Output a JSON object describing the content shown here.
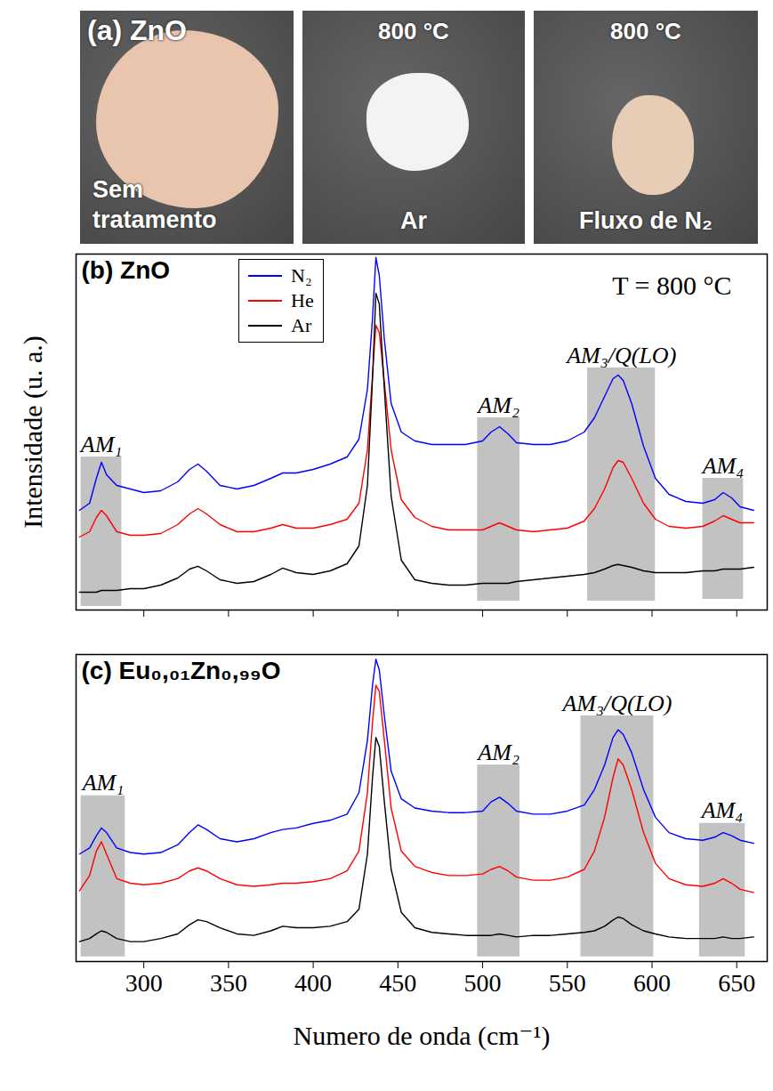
{
  "panel_a": {
    "label": "(a) ZnO",
    "photos": [
      {
        "caption": "Sem tratamento"
      },
      {
        "heading": "800 °C",
        "caption": "Ar"
      },
      {
        "heading": "800 °C",
        "caption": "Fluxo de N₂"
      }
    ]
  },
  "chart_data": [
    {
      "type": "line",
      "title": "(b) ZnO",
      "ylabel": "Intensidade (u. a.)",
      "annotations": [
        "T = 800 °C"
      ],
      "xlim": [
        260,
        668
      ],
      "xticks": [
        300,
        350,
        400,
        450,
        500,
        550,
        600,
        650
      ],
      "ylim": [
        0,
        100
      ],
      "tick_labels": false,
      "grid": false,
      "legend": "top-left",
      "x": [
        262,
        268,
        272,
        275,
        278,
        284,
        292,
        300,
        310,
        320,
        327,
        332,
        337,
        345,
        355,
        365,
        375,
        382,
        390,
        400,
        410,
        420,
        427,
        432,
        435,
        437,
        439,
        442,
        446,
        452,
        460,
        470,
        480,
        490,
        500,
        505,
        510,
        515,
        520,
        530,
        540,
        550,
        560,
        566,
        572,
        577,
        580,
        583,
        588,
        595,
        602,
        610,
        620,
        630,
        637,
        642,
        647,
        652,
        660
      ],
      "series": [
        {
          "name": "N₂",
          "color": "#0000ff",
          "values": [
            28,
            30,
            37,
            41.5,
            38,
            35,
            34,
            33,
            33.5,
            36,
            39.5,
            41,
            39,
            35,
            34,
            35,
            37,
            38.5,
            38.5,
            39.5,
            41,
            43,
            48,
            62,
            82,
            99,
            94,
            76,
            58,
            50,
            47.5,
            46.5,
            46.5,
            46.5,
            47.5,
            50,
            51.5,
            49.5,
            47,
            46.5,
            46.5,
            47.5,
            50,
            54,
            60,
            65,
            66,
            64.5,
            58,
            46,
            37,
            32.5,
            30.5,
            30,
            31,
            33,
            31.5,
            29,
            28
          ]
        },
        {
          "name": "He",
          "color": "#ff0000",
          "values": [
            20.5,
            22,
            26,
            28,
            26.5,
            22,
            21,
            21,
            21.5,
            24,
            27,
            28.5,
            27,
            24,
            22,
            22,
            23,
            24,
            23,
            23,
            24,
            25.5,
            30,
            45,
            66,
            80,
            78,
            64,
            45,
            31,
            26,
            23.5,
            22.5,
            22.5,
            22.5,
            23.5,
            24.5,
            23.5,
            22.5,
            22,
            22.5,
            23,
            25,
            28.5,
            34,
            40,
            42,
            41.5,
            37,
            30,
            25.5,
            23.5,
            23,
            23.5,
            25,
            26.5,
            25.5,
            24.5,
            24.5
          ]
        },
        {
          "name": "Ar",
          "color": "#000000",
          "values": [
            5,
            5,
            5,
            5.5,
            5.5,
            5.5,
            6,
            6,
            7,
            9,
            11.5,
            12.3,
            11,
            8.5,
            7.5,
            8,
            10,
            11.8,
            10.5,
            10,
            11,
            13,
            18,
            35,
            65,
            89,
            86,
            62,
            32,
            14,
            8.5,
            7.5,
            7,
            7,
            7.5,
            7.5,
            7.5,
            7.5,
            8,
            8.5,
            9,
            9.5,
            10,
            10.5,
            11.5,
            12.5,
            12.8,
            12.5,
            12,
            11,
            10.5,
            10.5,
            10.5,
            11,
            11,
            11.5,
            11.5,
            11.5,
            12
          ]
        }
      ],
      "regions": [
        {
          "label": "AM₁",
          "xrange": [
            263,
            287
          ],
          "yrange": [
            1,
            43
          ]
        },
        {
          "label": "AM₂",
          "xrange": [
            497,
            522
          ],
          "yrange": [
            2.5,
            54
          ]
        },
        {
          "label": "AM₃/Q(LO)",
          "xrange": [
            562,
            602
          ],
          "yrange": [
            2.5,
            68
          ]
        },
        {
          "label": "AM₄",
          "xrange": [
            630,
            654
          ],
          "yrange": [
            3,
            37
          ]
        }
      ]
    },
    {
      "type": "line",
      "title": "(c) Eu₀,₀₁Zn₀,₉₉O",
      "xlabel": "Numero de onda (cm⁻¹)",
      "xlim": [
        260,
        668
      ],
      "xticks": [
        300,
        350,
        400,
        450,
        500,
        550,
        600,
        650
      ],
      "ylim": [
        0,
        100
      ],
      "tick_labels": "x",
      "grid": false,
      "x": [
        262,
        268,
        272,
        275,
        278,
        284,
        292,
        300,
        310,
        320,
        327,
        332,
        337,
        345,
        355,
        365,
        375,
        382,
        390,
        400,
        410,
        420,
        427,
        432,
        435,
        437,
        439,
        442,
        446,
        452,
        460,
        470,
        480,
        490,
        500,
        505,
        510,
        515,
        520,
        530,
        540,
        550,
        560,
        566,
        572,
        577,
        580,
        583,
        588,
        595,
        602,
        610,
        620,
        630,
        637,
        642,
        647,
        652,
        660
      ],
      "series": [
        {
          "name": "N₂",
          "color": "#0000ff",
          "values": [
            35,
            37,
            41,
            43.5,
            42,
            37,
            35.5,
            35,
            35.5,
            38,
            42,
            44.5,
            43,
            40,
            39,
            40,
            42,
            43,
            43.5,
            45,
            46,
            48,
            55,
            72,
            90,
            98.5,
            95,
            80,
            62,
            53,
            50,
            49,
            48.5,
            48.5,
            49,
            52,
            53.5,
            51.5,
            49,
            48,
            48,
            49,
            51,
            56,
            64,
            73,
            75.5,
            74,
            68,
            56,
            47,
            42,
            40,
            39.5,
            40.5,
            42,
            41,
            39.5,
            38.5
          ]
        },
        {
          "name": "He",
          "color": "#ff0000",
          "values": [
            23,
            28,
            36,
            39,
            35,
            27,
            25.5,
            25,
            25.5,
            27,
            29.5,
            30.5,
            29.5,
            27,
            25,
            24.5,
            25,
            25.5,
            25.5,
            26,
            27,
            29.5,
            36,
            55,
            78,
            90,
            88,
            72,
            50,
            36,
            31,
            29,
            28,
            28,
            28.5,
            30,
            31,
            29.5,
            27.5,
            26.5,
            26.5,
            27.5,
            30,
            36,
            47,
            60,
            66,
            64,
            56,
            42,
            32,
            27,
            25,
            24.5,
            25.5,
            27,
            25.5,
            23.5,
            22.5
          ]
        },
        {
          "name": "Ar",
          "color": "#000000",
          "values": [
            6.5,
            7.5,
            9,
            10,
            9.5,
            7.5,
            6.5,
            6.5,
            7.5,
            9,
            12,
            13.6,
            13,
            11,
            9,
            8.5,
            10,
            11.5,
            11,
            11,
            11.5,
            13,
            17,
            35,
            60,
            73,
            70,
            52,
            30,
            16,
            11,
            9.5,
            9,
            8.5,
            8.5,
            8.5,
            9,
            8.5,
            8,
            8.5,
            8.5,
            9,
            9.5,
            10,
            11.5,
            13.5,
            14.5,
            14,
            12,
            10,
            9,
            8,
            7.5,
            7.5,
            7.5,
            8,
            7.5,
            7.5,
            8
          ]
        }
      ],
      "regions": [
        {
          "label": "AM₁",
          "xrange": [
            263,
            289
          ],
          "yrange": [
            1.5,
            54
          ]
        },
        {
          "label": "AM₂",
          "xrange": [
            497,
            522
          ],
          "yrange": [
            1.5,
            64
          ]
        },
        {
          "label": "AM₃/Q(LO)",
          "xrange": [
            558,
            601
          ],
          "yrange": [
            1.5,
            80
          ]
        },
        {
          "label": "AM₄",
          "xrange": [
            628,
            655
          ],
          "yrange": [
            1.5,
            45
          ]
        }
      ]
    }
  ]
}
